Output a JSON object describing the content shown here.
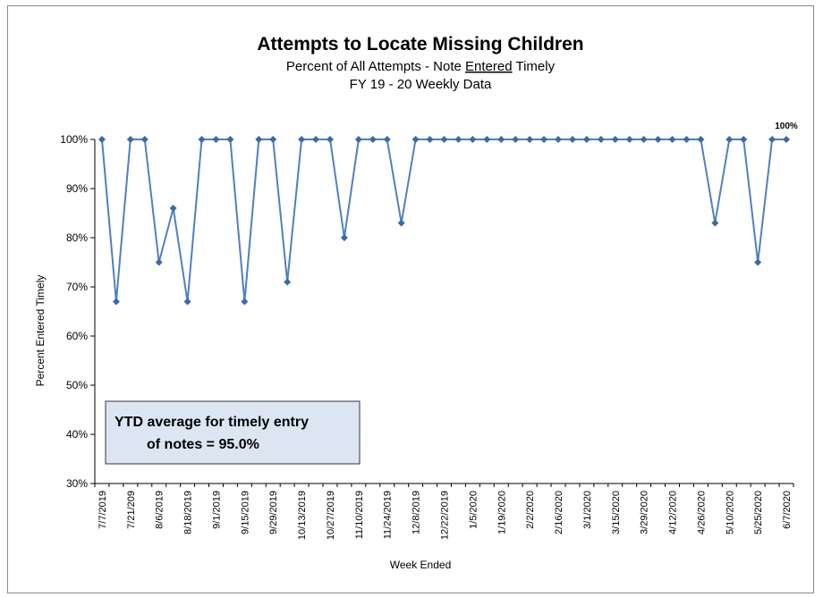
{
  "colors": {
    "series": "#4F81BD",
    "marker": "#3A6AA8",
    "note_fill": "#DCE6F2",
    "note_border": "#333333",
    "axis": "#000000"
  },
  "chart_data": {
    "type": "line",
    "title": "Attempts to Locate Missing Children",
    "subtitle_prefix": "Percent of All Attempts -  Note ",
    "subtitle_underlined": "Entered",
    "subtitle_suffix": " Timely",
    "subtitle2": "FY 19 - 20  Weekly Data",
    "xlabel": "Week Ended",
    "ylabel": "Percent Entered Timely",
    "ylim": [
      30,
      100
    ],
    "yticks": [
      "30%",
      "40%",
      "50%",
      "60%",
      "70%",
      "80%",
      "90%",
      "100%"
    ],
    "grid": false,
    "legend": "none",
    "x_tick_labels": [
      "7/7/2019",
      "7/21/209",
      "8/6/2019",
      "8/18/2019",
      "9/1/2019",
      "9/15/2019",
      "9/29/2019",
      "10/13/2019",
      "10/27/2019",
      "11/10/2019",
      "11/24/2019",
      "12/8/2019",
      "12/22/2019",
      "1/5/2020",
      "1/19/2020",
      "2/2/2020",
      "2/16/2020",
      "3/1/2020",
      "3/15/2020",
      "3/29/2020",
      "4/12/2020",
      "4/26/2020",
      "5/10/2020",
      "5/25/2020",
      "6/7/2020"
    ],
    "values": [
      100,
      67,
      100,
      100,
      75,
      86,
      67,
      100,
      100,
      100,
      67,
      100,
      100,
      71,
      100,
      100,
      100,
      80,
      100,
      100,
      100,
      83,
      100,
      100,
      100,
      100,
      100,
      100,
      100,
      100,
      100,
      100,
      100,
      100,
      100,
      100,
      100,
      100,
      100,
      100,
      100,
      100,
      100,
      83,
      100,
      100,
      75,
      100,
      100
    ],
    "last_point_label": "100%",
    "annotation_line1": "YTD average for timely entry",
    "annotation_line2": "of notes =  95.0%"
  }
}
